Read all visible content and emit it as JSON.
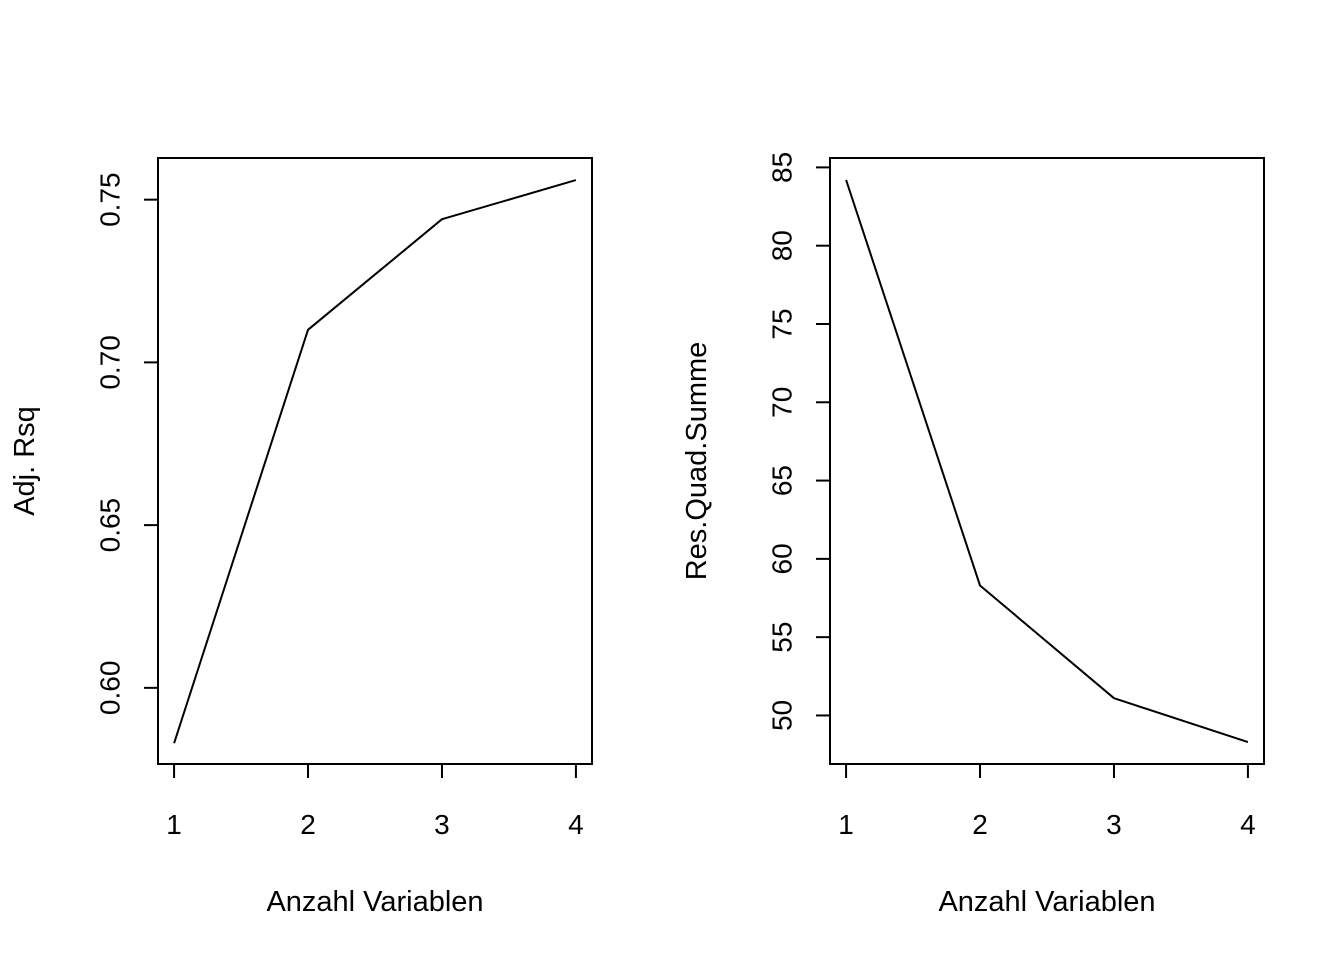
{
  "chart_data": [
    {
      "type": "line",
      "title": "",
      "xlabel": "Anzahl Variablen",
      "ylabel": "Adj. Rsq",
      "x": [
        1,
        2,
        3,
        4
      ],
      "xticks": [
        "1",
        "2",
        "3",
        "4"
      ],
      "xlim": [
        0.88,
        4.12
      ],
      "y": [
        0.583,
        0.71,
        0.744,
        0.756
      ],
      "yticks": [
        "0.60",
        "0.65",
        "0.70",
        "0.75"
      ],
      "ytick_values": [
        0.6,
        0.65,
        0.7,
        0.75
      ],
      "ylim": [
        0.5766,
        0.7628
      ],
      "grid": false,
      "legend": "none"
    },
    {
      "type": "line",
      "title": "",
      "xlabel": "Anzahl Variablen",
      "ylabel": "Res.Quad.Summe",
      "x": [
        1,
        2,
        3,
        4
      ],
      "xticks": [
        "1",
        "2",
        "3",
        "4"
      ],
      "xlim": [
        0.88,
        4.12
      ],
      "y": [
        84.2,
        58.3,
        51.1,
        48.3
      ],
      "yticks": [
        "50",
        "55",
        "60",
        "65",
        "70",
        "75",
        "80",
        "85"
      ],
      "ytick_values": [
        50,
        55,
        60,
        65,
        70,
        75,
        80,
        85
      ],
      "ylim": [
        46.9,
        85.6
      ],
      "grid": false,
      "legend": "none"
    }
  ]
}
